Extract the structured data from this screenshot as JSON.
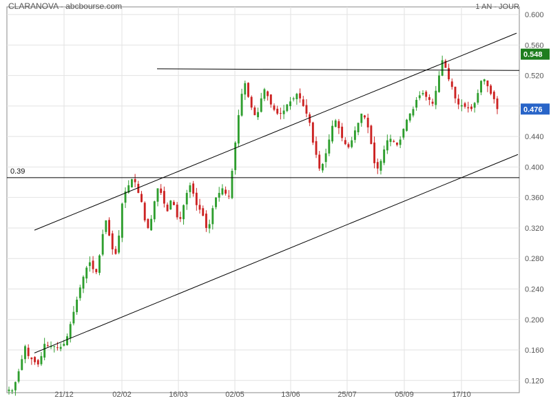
{
  "header": {
    "title": "CLARANOVA - abcbourse.com",
    "period": "1 AN - JOUR"
  },
  "colors": {
    "up": "#2e9e2e",
    "down": "#cc2222",
    "grid": "#e2e2e2",
    "axis": "#555555",
    "line": "#000000",
    "last_price_badge": "#2864c8",
    "high_badge": "#1e7d1e"
  },
  "chart_data": {
    "type": "candlestick",
    "title": "CLARANOVA - abcbourse.com",
    "x_ticks": [
      "21/12",
      "02/02",
      "16/03",
      "02/05",
      "13/06",
      "25/07",
      "05/09",
      "17/10"
    ],
    "y_ticks": [
      "0.600",
      "0.560",
      "0.520",
      "0.480",
      "0.440",
      "0.400",
      "0.360",
      "0.320",
      "0.280",
      "0.240",
      "0.200",
      "0.160",
      "0.120"
    ],
    "ylim": [
      0.104,
      0.61
    ],
    "grid": true,
    "badges": [
      {
        "label": "0.548",
        "value": 0.548,
        "kind": "high"
      },
      {
        "label": "0.476",
        "value": 0.476,
        "kind": "last"
      }
    ],
    "support_label": {
      "text": "0.39",
      "value": 0.386
    },
    "annotations": [
      {
        "name": "support-line",
        "value": 0.386
      },
      {
        "name": "resistance-line",
        "from": {
          "x": "02/02",
          "y": 0.529
        },
        "to": {
          "x": "17/10",
          "y": 0.527
        }
      },
      {
        "name": "channel-upper",
        "from": {
          "x": "21/12",
          "y": 0.333
        },
        "to": {
          "x": "17/10",
          "y": 0.546
        }
      },
      {
        "name": "channel-lower",
        "from": {
          "x": "21/12",
          "y": 0.172
        },
        "to": {
          "x": "17/10",
          "y": 0.386
        }
      }
    ],
    "series": [
      {
        "close": [
          0.108,
          0.107,
          0.118,
          0.132,
          0.148,
          0.165,
          0.152,
          0.148,
          0.144,
          0.141,
          0.152,
          0.168,
          0.166,
          0.165,
          0.165,
          0.163,
          0.164,
          0.168,
          0.178,
          0.194,
          0.21,
          0.226,
          0.242,
          0.256,
          0.268,
          0.275,
          0.266,
          0.262,
          0.284,
          0.312,
          0.33,
          0.31,
          0.292,
          0.286,
          0.31,
          0.352,
          0.368,
          0.376,
          0.384,
          0.38,
          0.366,
          0.354,
          0.33,
          0.32,
          0.332,
          0.355,
          0.372,
          0.366,
          0.352,
          0.342,
          0.356,
          0.35,
          0.334,
          0.332,
          0.35,
          0.366,
          0.376,
          0.365,
          0.35,
          0.344,
          0.336,
          0.32,
          0.325,
          0.346,
          0.36,
          0.366,
          0.372,
          0.365,
          0.362,
          0.395,
          0.432,
          0.468,
          0.496,
          0.51,
          0.492,
          0.478,
          0.468,
          0.472,
          0.49,
          0.502,
          0.493,
          0.482,
          0.475,
          0.47,
          0.47,
          0.474,
          0.482,
          0.486,
          0.49,
          0.496,
          0.49,
          0.48,
          0.47,
          0.458,
          0.432,
          0.416,
          0.398,
          0.404,
          0.418,
          0.436,
          0.454,
          0.461,
          0.451,
          0.438,
          0.43,
          0.426,
          0.435,
          0.448,
          0.458,
          0.47,
          0.465,
          0.452,
          0.43,
          0.405,
          0.398,
          0.408,
          0.423,
          0.435,
          0.437,
          0.433,
          0.429,
          0.436,
          0.45,
          0.462,
          0.47,
          0.476,
          0.488,
          0.494,
          0.497,
          0.492,
          0.488,
          0.483,
          0.5,
          0.52,
          0.54,
          0.53,
          0.515,
          0.505,
          0.49,
          0.482,
          0.481,
          0.479,
          0.477,
          0.476,
          0.484,
          0.497,
          0.513,
          0.515,
          0.506,
          0.496,
          0.489,
          0.476
        ]
      }
    ]
  }
}
